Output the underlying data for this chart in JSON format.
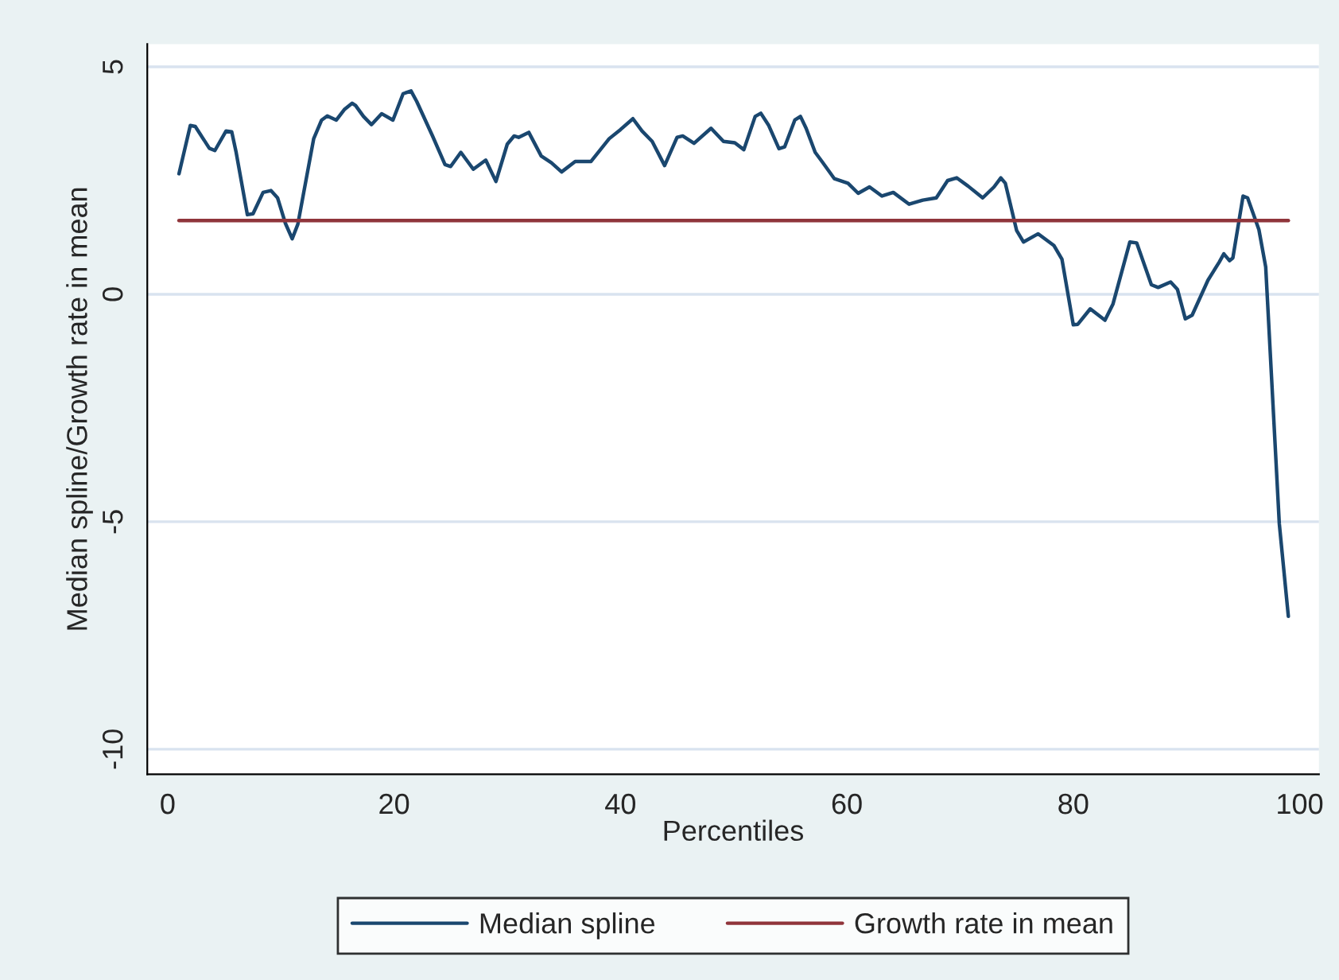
{
  "chart_data": {
    "type": "line",
    "xlabel": "Percentiles",
    "ylabel": "Median spline/Growth rate in mean",
    "xlim": [
      -1.8,
      101.7
    ],
    "ylim": [
      -10.55,
      5.5
    ],
    "xticks": [
      0,
      20,
      40,
      60,
      80,
      100
    ],
    "yticks": [
      -10,
      -5,
      0,
      5
    ],
    "grid": "y",
    "legend": "bottom",
    "series": [
      {
        "name": "Median spline",
        "color": "#1a476f",
        "x": [
          1,
          2,
          2.44,
          3.68,
          4.17,
          5.16,
          5.66,
          6.05,
          7.04,
          7.54,
          8.43,
          9.12,
          9.71,
          10.4,
          11,
          11.5,
          12.2,
          12.9,
          13.6,
          14.1,
          14.9,
          15.6,
          16.3,
          16.6,
          17.3,
          18,
          18.9,
          19.9,
          20.8,
          21.5,
          22,
          23.4,
          24.5,
          25,
          25.9,
          27,
          28.1,
          29,
          30,
          30.6,
          31,
          31.9,
          33,
          33.9,
          34.8,
          36,
          37.4,
          39,
          40,
          41.1,
          41.9,
          42.8,
          43.9,
          45,
          45.5,
          46.5,
          48,
          49.1,
          50.1,
          50.9,
          51.9,
          52.4,
          53.1,
          54,
          54.5,
          55.4,
          55.9,
          56.4,
          57.2,
          57.8,
          58.9,
          60.1,
          61,
          62,
          63.1,
          64.1,
          65.5,
          66.7,
          67.9,
          68.9,
          69.7,
          70.7,
          72,
          73,
          73.6,
          74,
          75,
          75.6,
          76.9,
          78.3,
          79,
          80,
          80.4,
          81.5,
          82.8,
          83.5,
          85,
          85.6,
          86.9,
          87.5,
          88.6,
          89.2,
          89.9,
          90.5,
          91.9,
          92.9,
          93.3,
          93.8,
          94.1,
          95,
          95.4,
          96.4,
          97,
          98.2,
          99
        ],
        "values": [
          2.65,
          3.71,
          3.69,
          3.21,
          3.16,
          3.59,
          3.57,
          3.12,
          1.75,
          1.77,
          2.24,
          2.28,
          2.12,
          1.56,
          1.22,
          1.54,
          2.48,
          3.42,
          3.83,
          3.92,
          3.83,
          4.06,
          4.2,
          4.15,
          3.91,
          3.73,
          3.97,
          3.83,
          4.41,
          4.47,
          4.24,
          3.48,
          2.85,
          2.81,
          3.12,
          2.75,
          2.95,
          2.48,
          3.3,
          3.48,
          3.45,
          3.56,
          3.04,
          2.89,
          2.69,
          2.92,
          2.92,
          3.42,
          3.62,
          3.86,
          3.59,
          3.36,
          2.83,
          3.45,
          3.48,
          3.32,
          3.65,
          3.36,
          3.33,
          3.18,
          3.91,
          3.98,
          3.71,
          3.2,
          3.24,
          3.83,
          3.91,
          3.65,
          3.12,
          2.92,
          2.54,
          2.44,
          2.22,
          2.36,
          2.16,
          2.24,
          1.98,
          2.07,
          2.12,
          2.5,
          2.56,
          2.38,
          2.12,
          2.36,
          2.56,
          2.44,
          1.4,
          1.15,
          1.33,
          1.07,
          0.77,
          -0.67,
          -0.66,
          -0.32,
          -0.57,
          -0.22,
          1.15,
          1.13,
          0.21,
          0.15,
          0.27,
          0.11,
          -0.54,
          -0.46,
          0.31,
          0.71,
          0.89,
          0.74,
          0.8,
          2.16,
          2.12,
          1.42,
          0.6,
          -5.04,
          -7.08
        ]
      },
      {
        "name": "Growth rate in mean",
        "color": "#90353b",
        "x": [
          1,
          99
        ],
        "values": [
          1.62,
          1.62
        ]
      }
    ]
  }
}
